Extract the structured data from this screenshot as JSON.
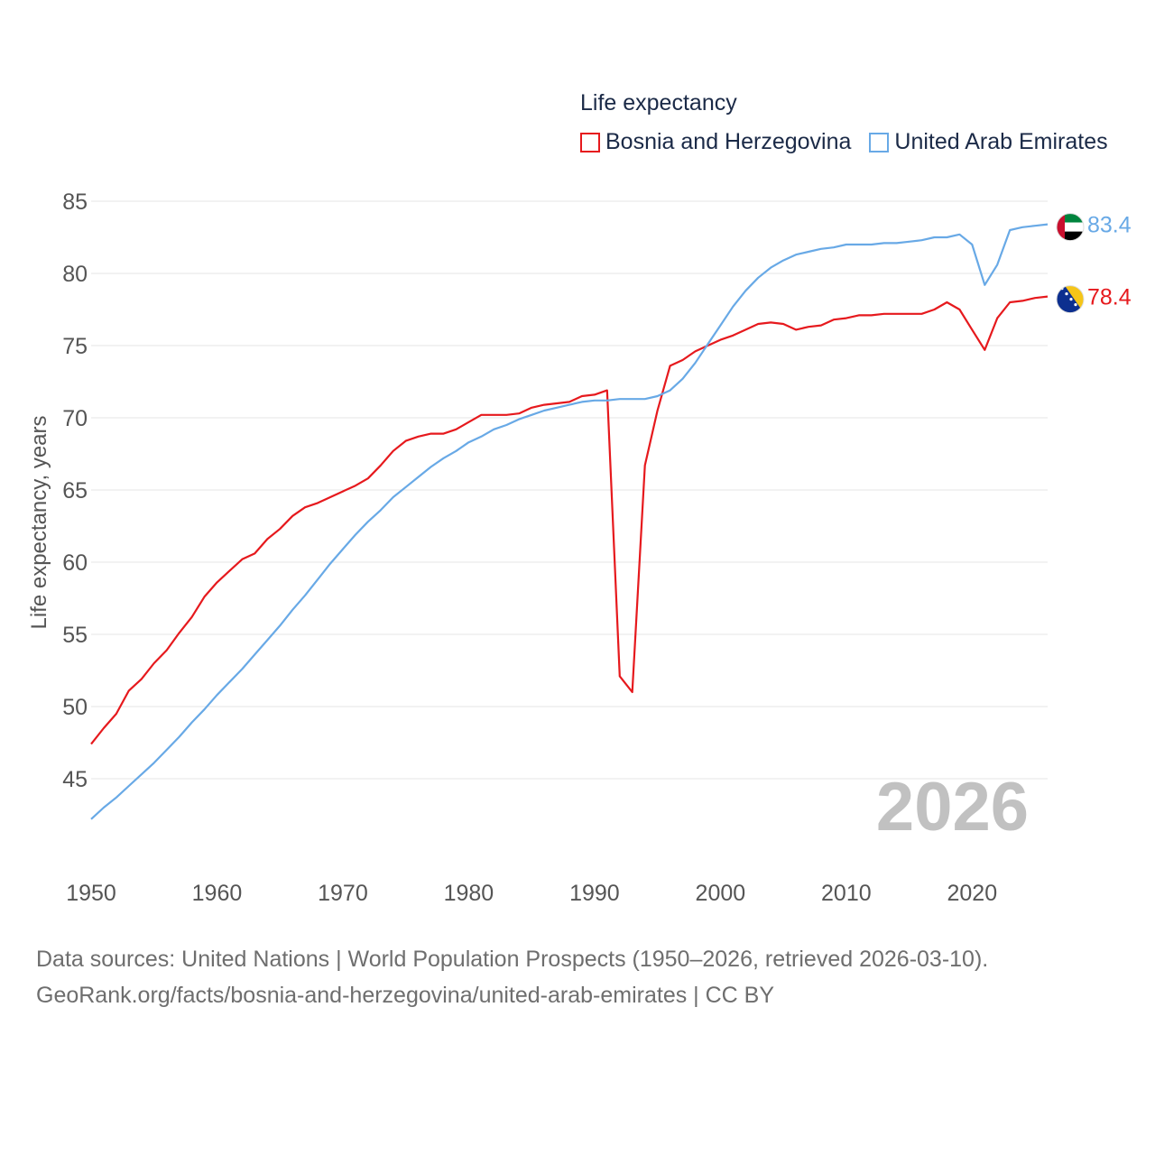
{
  "legend": {
    "title": "Life expectancy",
    "items": [
      {
        "name": "Bosnia and Herzegovina",
        "color": "#e6191d"
      },
      {
        "name": "United Arab Emirates",
        "color": "#68a9e6"
      }
    ]
  },
  "year_label": "2026",
  "footer": {
    "line1": "Data sources: United Nations | World Population Prospects (1950–2026, retrieved 2026-03-10).",
    "line2": "GeoRank.org/facts/bosnia-and-herzegovina/united-arab-emirates | CC BY"
  },
  "chart_data": {
    "type": "line",
    "title": "Life expectancy",
    "xlabel": "",
    "ylabel": "Life expectancy, years",
    "xlim": [
      1950,
      2026
    ],
    "ylim": [
      41,
      86
    ],
    "x_ticks": [
      1950,
      1960,
      1970,
      1980,
      1990,
      2000,
      2010,
      2020
    ],
    "y_ticks": [
      45,
      50,
      55,
      60,
      65,
      70,
      75,
      80,
      85
    ],
    "grid": true,
    "legend_position": "top-right",
    "x": [
      1950,
      1951,
      1952,
      1953,
      1954,
      1955,
      1956,
      1957,
      1958,
      1959,
      1960,
      1961,
      1962,
      1963,
      1964,
      1965,
      1966,
      1967,
      1968,
      1969,
      1970,
      1971,
      1972,
      1973,
      1974,
      1975,
      1976,
      1977,
      1978,
      1979,
      1980,
      1981,
      1982,
      1983,
      1984,
      1985,
      1986,
      1987,
      1988,
      1989,
      1990,
      1991,
      1992,
      1993,
      1994,
      1995,
      1996,
      1997,
      1998,
      1999,
      2000,
      2001,
      2002,
      2003,
      2004,
      2005,
      2006,
      2007,
      2008,
      2009,
      2010,
      2011,
      2012,
      2013,
      2014,
      2015,
      2016,
      2017,
      2018,
      2019,
      2020,
      2021,
      2022,
      2023,
      2024,
      2025,
      2026
    ],
    "series": [
      {
        "name": "Bosnia and Herzegovina",
        "color": "#e6191d",
        "end_label": "78.4",
        "flag": "bosnia-flag",
        "values": [
          47.4,
          48.5,
          49.5,
          51.1,
          51.9,
          53.0,
          53.9,
          55.1,
          56.2,
          57.6,
          58.6,
          59.4,
          60.2,
          60.6,
          61.6,
          62.3,
          63.2,
          63.8,
          64.1,
          64.5,
          64.9,
          65.3,
          65.8,
          66.7,
          67.7,
          68.4,
          68.7,
          68.9,
          68.9,
          69.2,
          69.7,
          70.2,
          70.2,
          70.2,
          70.3,
          70.7,
          70.9,
          71.0,
          71.1,
          71.5,
          71.6,
          71.9,
          52.1,
          51.0,
          66.7,
          70.5,
          73.6,
          74.0,
          74.6,
          75.0,
          75.4,
          75.7,
          76.1,
          76.5,
          76.6,
          76.5,
          76.1,
          76.3,
          76.4,
          76.8,
          76.9,
          77.1,
          77.1,
          77.2,
          77.2,
          77.2,
          77.2,
          77.5,
          78.0,
          77.5,
          76.1,
          74.7,
          76.9,
          78.0,
          78.1,
          78.3,
          78.4
        ]
      },
      {
        "name": "United Arab Emirates",
        "color": "#68a9e6",
        "end_label": "83.4",
        "flag": "uae-flag",
        "values": [
          42.2,
          43.0,
          43.7,
          44.5,
          45.3,
          46.1,
          47.0,
          47.9,
          48.9,
          49.8,
          50.8,
          51.7,
          52.6,
          53.6,
          54.6,
          55.6,
          56.7,
          57.7,
          58.8,
          59.9,
          60.9,
          61.9,
          62.8,
          63.6,
          64.5,
          65.2,
          65.9,
          66.6,
          67.2,
          67.7,
          68.3,
          68.7,
          69.2,
          69.5,
          69.9,
          70.2,
          70.5,
          70.7,
          70.9,
          71.1,
          71.2,
          71.2,
          71.3,
          71.3,
          71.3,
          71.5,
          71.9,
          72.7,
          73.8,
          75.1,
          76.4,
          77.7,
          78.8,
          79.7,
          80.4,
          80.9,
          81.3,
          81.5,
          81.7,
          81.8,
          82.0,
          82.0,
          82.0,
          82.1,
          82.1,
          82.2,
          82.3,
          82.5,
          82.5,
          82.7,
          82.0,
          79.2,
          80.6,
          83.0,
          83.2,
          83.3,
          83.4
        ]
      }
    ]
  }
}
